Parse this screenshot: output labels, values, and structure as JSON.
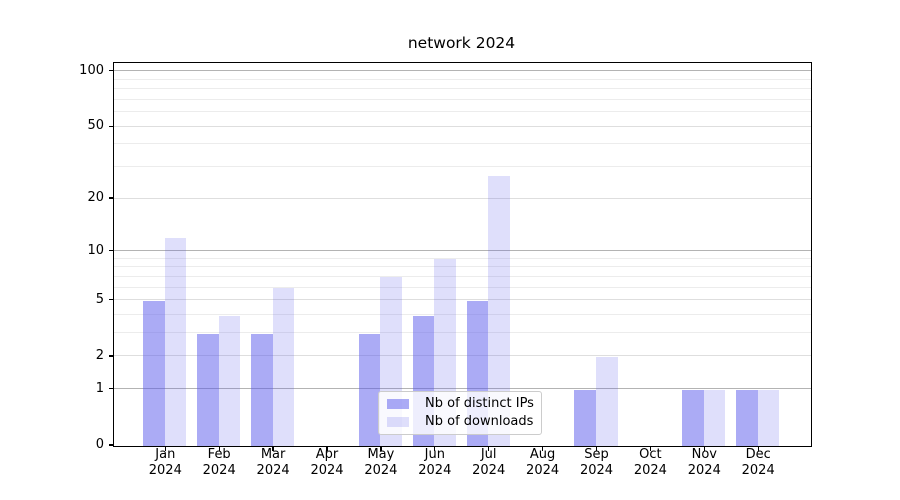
{
  "chart_data": {
    "type": "bar",
    "title": "network 2024",
    "categories": [
      "Jan 2024",
      "Feb 2024",
      "Mar 2024",
      "Apr 2024",
      "May 2024",
      "Jun 2024",
      "Jul 2024",
      "Aug 2024",
      "Sep 2024",
      "Oct 2024",
      "Nov 2024",
      "Dec 2024"
    ],
    "series": [
      {
        "name": "Nb of distinct IPs",
        "values": [
          5,
          3,
          3,
          0,
          3,
          4,
          5,
          0,
          1,
          0,
          1,
          1
        ]
      },
      {
        "name": "Nb of downloads",
        "values": [
          12,
          4,
          6,
          0,
          7,
          9,
          27,
          0,
          2,
          0,
          1,
          1
        ]
      }
    ],
    "xlabel": "",
    "ylabel": "",
    "yscale": "log(1+y)",
    "ylim": [
      0,
      111
    ],
    "yticks": [
      0,
      1,
      2,
      5,
      10,
      20,
      50,
      100
    ],
    "yticks_mid": [
      2,
      5,
      20,
      50
    ],
    "yticks_minor": [
      3,
      4,
      6,
      7,
      8,
      9,
      30,
      40,
      60,
      70,
      80,
      90
    ],
    "grid": true,
    "legend_position": "lower center"
  },
  "colors": {
    "bar_distinct_ips": "rgba(87,87,235,0.5)",
    "bar_downloads": "rgba(87,87,235,0.19)",
    "grid_major": "#b3b3b3",
    "grid_mid": "#dedede",
    "grid_minor": "#ececec",
    "axis_line": "#000000",
    "text": "#000000"
  }
}
